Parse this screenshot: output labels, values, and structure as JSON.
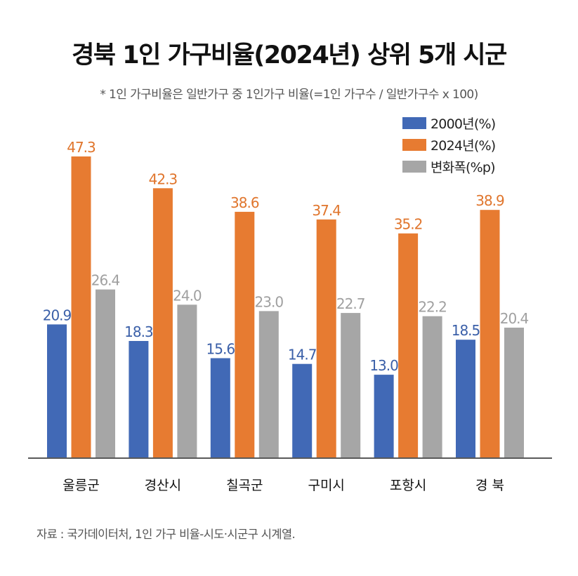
{
  "chart_data": {
    "type": "bar",
    "title": "경북 1인 가구비율(2024년) 상위 5개 시군",
    "subtitle": "* 1인 가구비율은 일반가구 중 1인가구 비율(=1인 가구수 / 일반가구수 x 100)",
    "categories": [
      "울릉군",
      "경산시",
      "칠곡군",
      "구미시",
      "포항시",
      "경 북"
    ],
    "series": [
      {
        "name": "2000년(%)",
        "color": "#4169b6",
        "label_color": "#3a5fa8",
        "values": [
          20.9,
          18.3,
          15.6,
          14.7,
          13.0,
          18.5
        ]
      },
      {
        "name": "2024년(%)",
        "color": "#e77b31",
        "label_color": "#e0752c",
        "values": [
          47.3,
          42.3,
          38.6,
          37.4,
          35.2,
          38.9
        ]
      },
      {
        "name": "변화폭(%p)",
        "color": "#a6a6a6",
        "label_color": "#a0a0a0",
        "values": [
          26.4,
          24.0,
          23.0,
          22.7,
          22.2,
          20.4
        ]
      }
    ],
    "value_labels": [
      [
        "20.9",
        "18.3",
        "15.6",
        "14.7",
        "13.0",
        "18.5"
      ],
      [
        "47.3",
        "42.3",
        "38.6",
        "37.4",
        "35.2",
        "38.9"
      ],
      [
        "26.4",
        "24.0",
        "23.0",
        "22.7",
        "22.2",
        "20.4"
      ]
    ],
    "ylim": [
      0,
      47.3
    ],
    "xlabel": "",
    "ylabel": "",
    "grid": false,
    "legend_position": "top-right",
    "source": "자료 : 국가데이터처, 1인 가구 비율-시도·시군구 시계열."
  }
}
